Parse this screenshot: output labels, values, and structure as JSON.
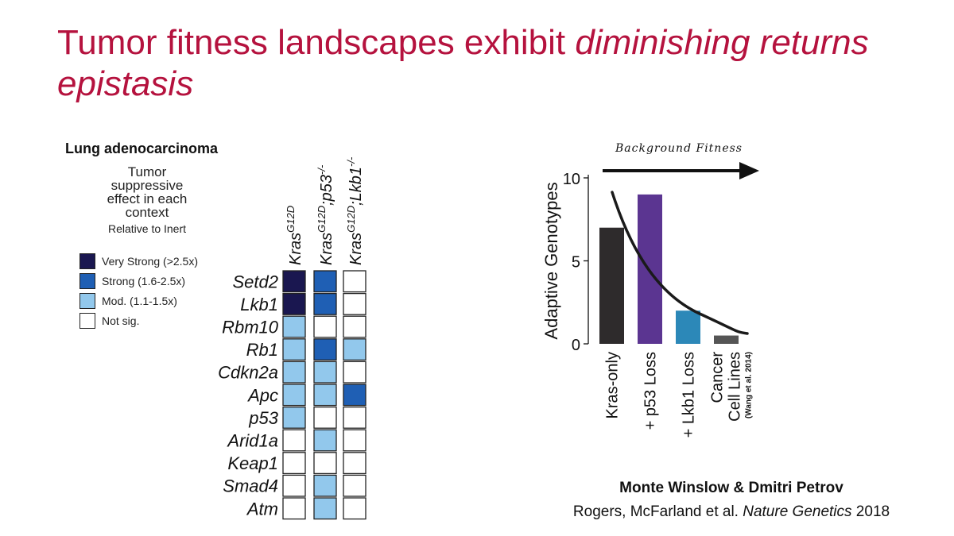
{
  "slide": {
    "title_plain": "Tumor fitness landscapes exhibit ",
    "title_italic": "diminishing returns epistasis",
    "credit": "Monte Winslow & Dmitri Petrov",
    "cite_authors": "Rogers, McFarland et al. ",
    "cite_journal": "Nature Genetics",
    "cite_year": " 2018"
  },
  "heatmap_panel": {
    "label": "Lung adenocarcinoma",
    "legend_title": [
      "Tumor",
      "suppressive",
      "effect in each",
      "context"
    ],
    "legend_subtitle": "Relative to Inert",
    "legend": [
      {
        "label": "Very Strong (>2.5x)",
        "color": "#1a1750"
      },
      {
        "label": "Strong (1.6-2.5x)",
        "color": "#1f5fb4"
      },
      {
        "label": "Mod. (1.1-1.5x)",
        "color": "#92c8ec"
      },
      {
        "label": "Not sig.",
        "color": "#ffffff"
      }
    ]
  },
  "chart_data": [
    {
      "type": "heatmap",
      "columns": [
        {
          "base": "Kras",
          "sup": "G12D",
          "suffix": "",
          "suffix_sup": ""
        },
        {
          "base": "Kras",
          "sup": "G12D",
          "suffix": ";p53",
          "suffix_sup": "-/-"
        },
        {
          "base": "Kras",
          "sup": "G12D",
          "suffix": ";Lkb1",
          "suffix_sup": "-/-"
        }
      ],
      "rows": [
        "Setd2",
        "Lkb1",
        "Rbm10",
        "Rb1",
        "Cdkn2a",
        "Apc",
        "p53",
        "Arid1a",
        "Keap1",
        "Smad4",
        "Atm"
      ],
      "levels": [
        [
          3,
          2,
          0
        ],
        [
          3,
          2,
          0
        ],
        [
          1,
          0,
          0
        ],
        [
          1,
          2,
          1
        ],
        [
          1,
          1,
          0
        ],
        [
          1,
          1,
          2
        ],
        [
          1,
          0,
          0
        ],
        [
          0,
          1,
          0
        ],
        [
          0,
          0,
          0
        ],
        [
          0,
          1,
          0
        ],
        [
          0,
          1,
          0
        ]
      ],
      "level_legend": [
        "Not sig.",
        "Mod. (1.1-1.5x)",
        "Strong (1.6-2.5x)",
        "Very Strong (>2.5x)"
      ]
    },
    {
      "type": "bar",
      "title": "Background Fitness",
      "ylabel": "Adaptive Genotypes",
      "ylim": [
        0,
        10
      ],
      "yticks": [
        "0",
        "5",
        "10"
      ],
      "categories": [
        {
          "label": "Kras-only"
        },
        {
          "label": "+ p53 Loss"
        },
        {
          "label": "+ Lkb1 Loss"
        },
        {
          "label": "Cancer",
          "label2": "Cell Lines",
          "note": "(Wang et al. 2014)"
        }
      ],
      "values": [
        7,
        9,
        2,
        0.5
      ],
      "colors": [
        "#2e2b2c",
        "#5b3591",
        "#2c88b8",
        "#555555"
      ]
    }
  ]
}
